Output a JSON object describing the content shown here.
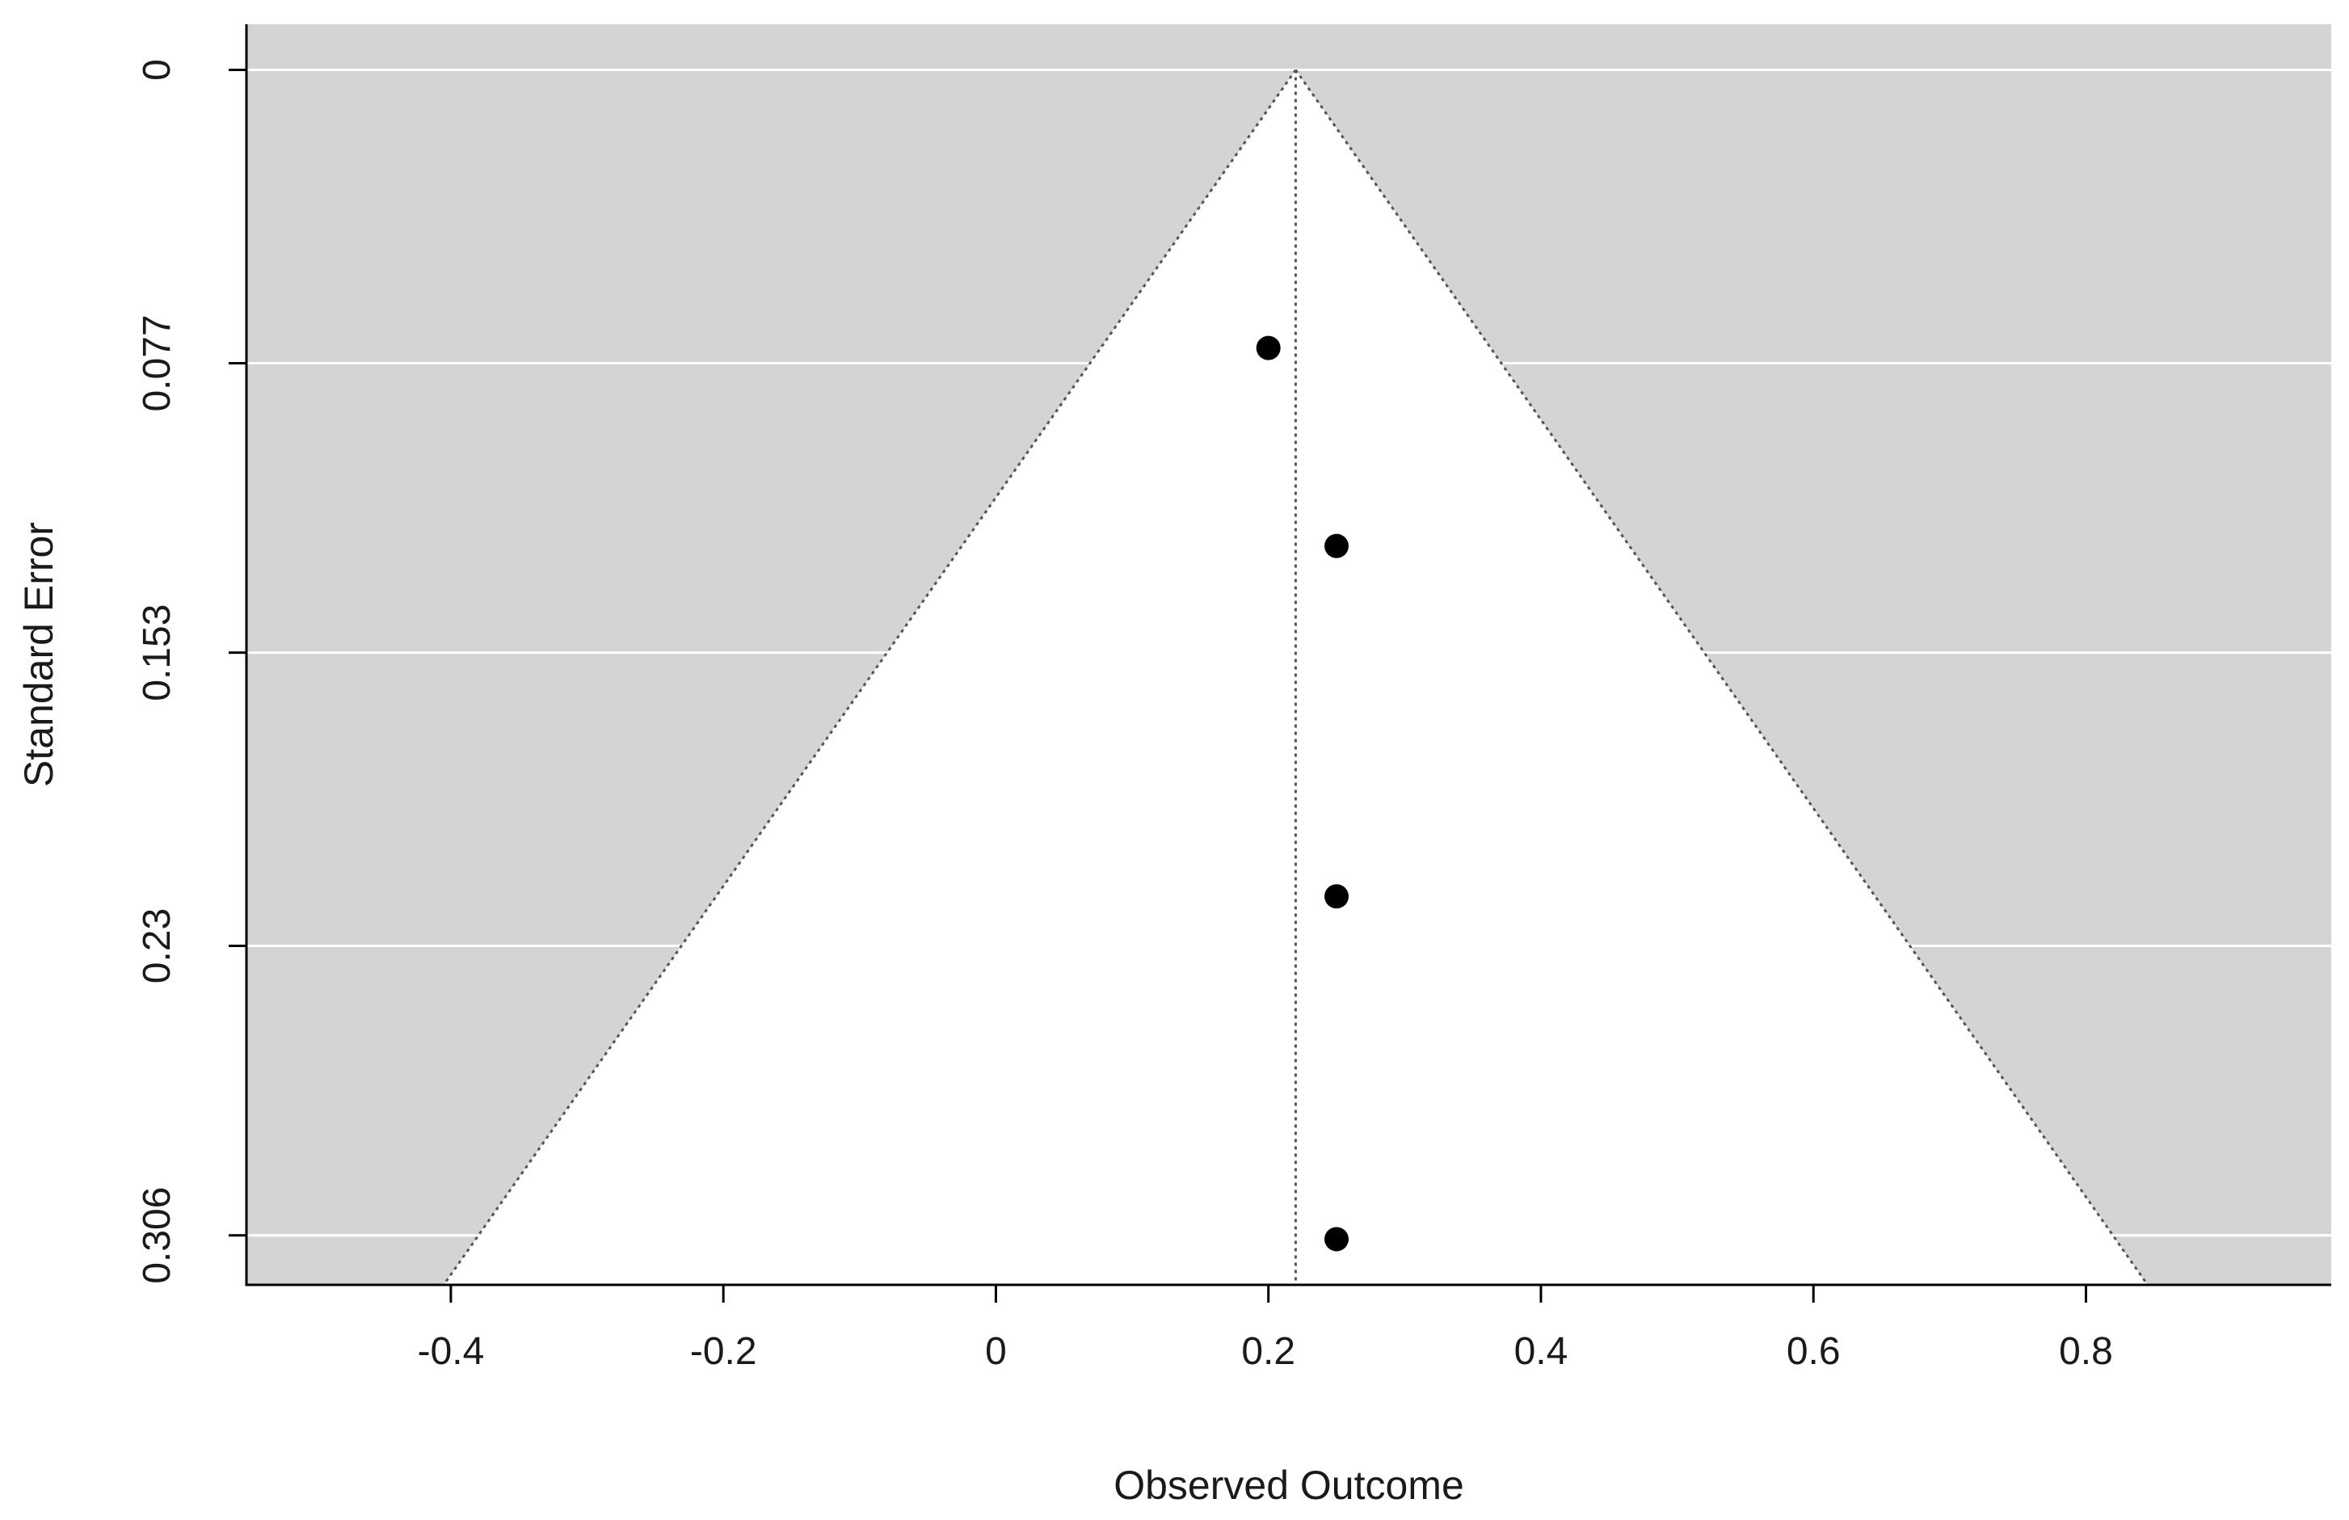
{
  "chart_data": {
    "type": "scatter",
    "subtype": "funnel",
    "title": "",
    "xlabel": "Observed Outcome",
    "ylabel": "Standard Error",
    "xlim": [
      -0.55,
      0.98
    ],
    "ylim": [
      0.319,
      -0.012
    ],
    "y_reversed": true,
    "x_ticks": [
      -0.4,
      -0.2,
      0,
      0.2,
      0.4,
      0.6,
      0.8
    ],
    "x_tick_labels": [
      "-0.4",
      "-0.2",
      "0",
      "0.2",
      "0.4",
      "0.6",
      "0.8"
    ],
    "y_ticks": [
      0,
      0.077,
      0.153,
      0.23,
      0.306
    ],
    "y_tick_labels": [
      "0",
      "0.077",
      "0.153",
      "0.23",
      "0.306"
    ],
    "grid": "horizontal",
    "legend": "none",
    "center_estimate": 0.22,
    "funnel_z": 1.96,
    "points": [
      {
        "x": 0.2,
        "y": 0.073
      },
      {
        "x": 0.25,
        "y": 0.125
      },
      {
        "x": 0.25,
        "y": 0.217
      },
      {
        "x": 0.25,
        "y": 0.307
      }
    ],
    "colors": {
      "background": "#d4d4d4",
      "funnel_fill": "#ffffff",
      "gridline": "#ffffff",
      "points": "#000000",
      "funnel_lines": "#555555"
    }
  }
}
